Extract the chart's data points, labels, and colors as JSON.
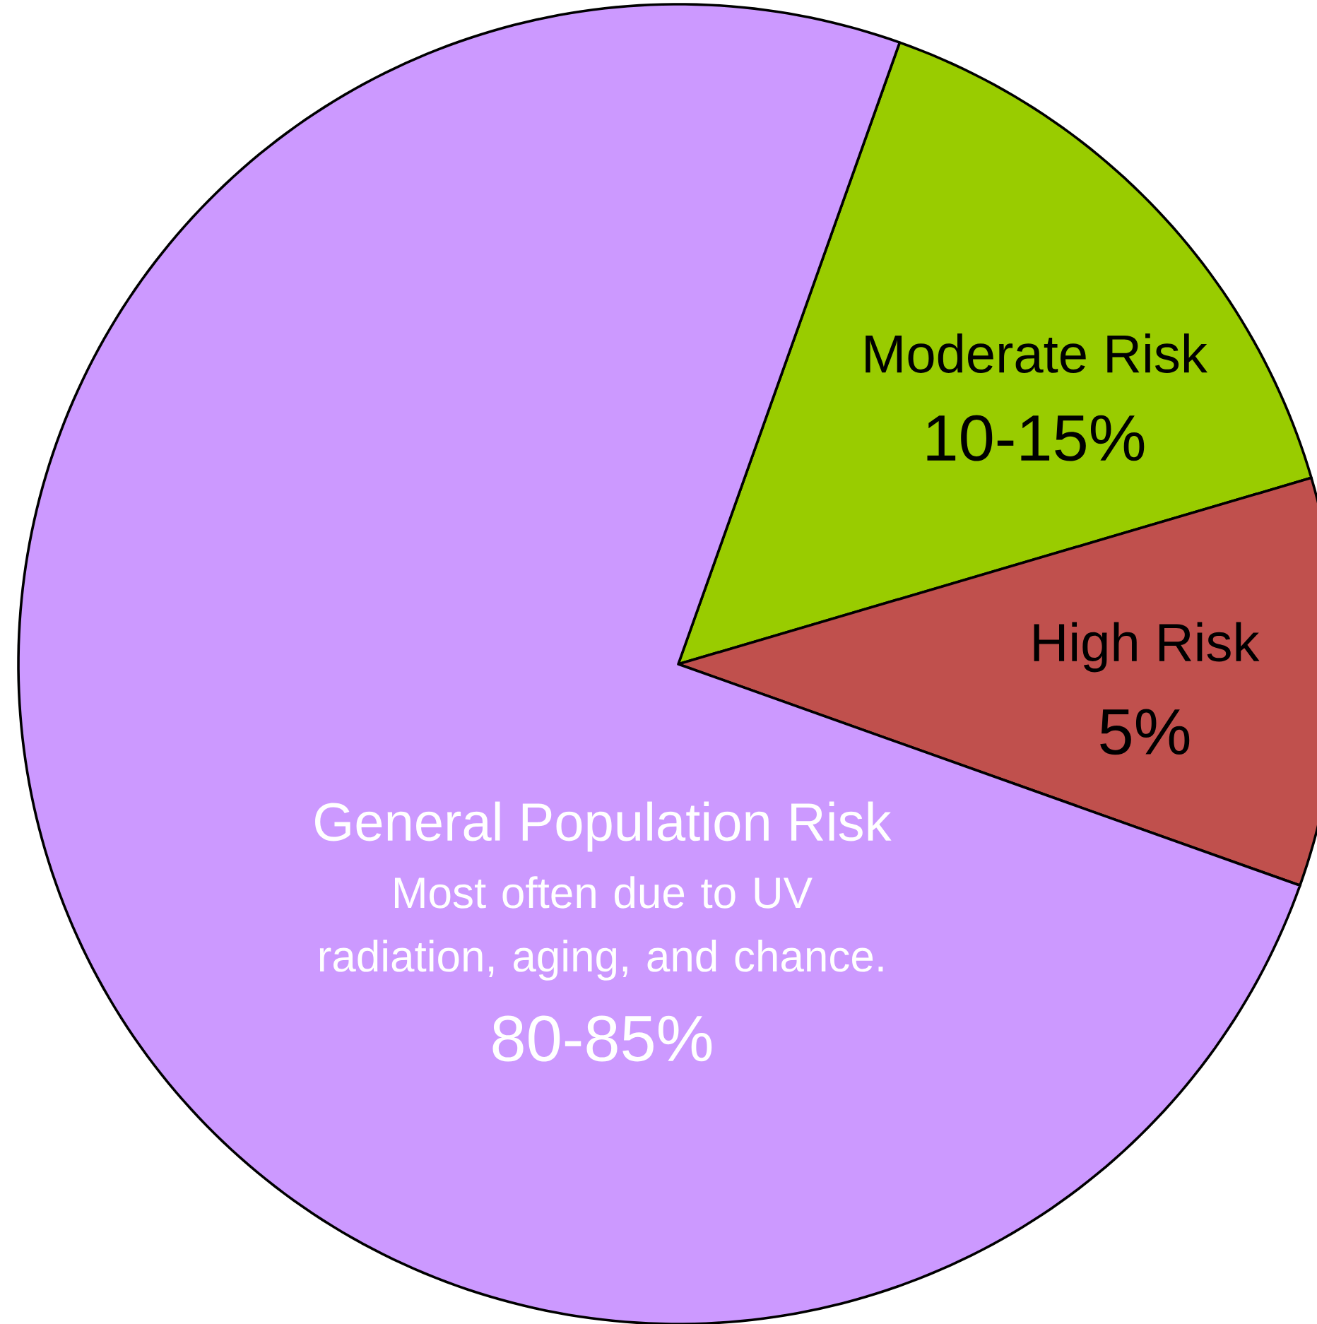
{
  "chart_data": {
    "type": "pie",
    "categories": [
      "Moderate Risk",
      "High Risk",
      "General Population Risk"
    ],
    "values": [
      15,
      10,
      75
    ],
    "colors": [
      "#99cc00",
      "#c0504d",
      "#cc99ff"
    ],
    "annotations": [
      "10-15%",
      "5%",
      "Most often due to UV radiation, aging, and chance.",
      "80-85%"
    ]
  }
}
